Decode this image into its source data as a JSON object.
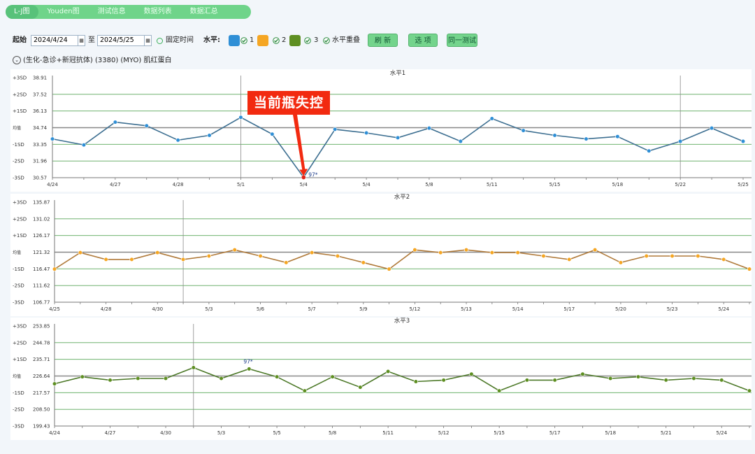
{
  "tabs": [
    {
      "label": "L-J图",
      "active": true
    },
    {
      "label": "Youden图",
      "active": false
    },
    {
      "label": "测试信息",
      "active": false
    },
    {
      "label": "数据列表",
      "active": false
    },
    {
      "label": "数据汇总",
      "active": false
    }
  ],
  "toolbar": {
    "start_label": "起始",
    "start_date": "2024/4/24",
    "to_label": "至",
    "end_date": "2024/5/25",
    "fixed_time_label": "固定时间",
    "level_label": "水平:",
    "levels": [
      {
        "label": "1",
        "color": "#2f8fd6"
      },
      {
        "label": "2",
        "color": "#f5a623"
      },
      {
        "label": "3",
        "color": "#5e8f22"
      }
    ],
    "overlay_label": "水平重叠",
    "refresh_label": "刷 新",
    "options_label": "选 项",
    "same_test_label": "同一测试"
  },
  "test_info": "(生化-急诊+新冠抗体)  (3380)  (MYO) 肌红蛋白",
  "annotation": {
    "text": "当前瓶失控",
    "color": "#f22a10"
  },
  "colors": {
    "grid": "#5aa85a",
    "mean": "#888888"
  },
  "chart_data": [
    {
      "type": "line",
      "title": "水平1",
      "sd_labels": [
        "+3SD",
        "+2SD",
        "+1SD",
        "均值",
        "-1SD",
        "-2SD",
        "-3SD"
      ],
      "y_ticks": [
        "38.91",
        "37.52",
        "36.13",
        "34.74",
        "33.35",
        "31.96",
        "30.57"
      ],
      "ylim": [
        30.57,
        38.91
      ],
      "mean": 34.74,
      "x_ticks": [
        "4/24",
        "4/27",
        "4/28",
        "5/1",
        "5/4",
        "5/4",
        "5/8",
        "5/11",
        "5/15",
        "5/18",
        "5/22",
        "5/25"
      ],
      "x_tick_pos": [
        0,
        2,
        4,
        6,
        8,
        10,
        12,
        14,
        16,
        18,
        20,
        22
      ],
      "vlines": [
        6,
        20
      ],
      "color": "#2f8fd6",
      "line_color": "#3d6f91",
      "values": [
        33.8,
        33.3,
        35.2,
        34.9,
        33.7,
        34.1,
        35.6,
        34.2,
        30.6,
        34.6,
        34.3,
        33.9,
        34.7,
        33.6,
        35.5,
        34.5,
        34.1,
        33.8,
        34.0,
        32.8,
        33.6,
        34.7,
        33.6
      ],
      "highlight": {
        "index": 8,
        "label": "97*",
        "color": "#e0241a"
      }
    },
    {
      "type": "line",
      "title": "水平2",
      "sd_labels": [
        "+3SD",
        "+2SD",
        "+1SD",
        "均值",
        "-1SD",
        "-2SD",
        "-3SD"
      ],
      "y_ticks": [
        "135.87",
        "131.02",
        "126.17",
        "121.32",
        "116.47",
        "111.62",
        "106.77"
      ],
      "ylim": [
        106.77,
        135.87
      ],
      "mean": 121.32,
      "x_ticks": [
        "4/25",
        "4/28",
        "4/30",
        "5/3",
        "5/6",
        "5/7",
        "5/9",
        "5/12",
        "5/13",
        "5/14",
        "5/17",
        "5/20",
        "5/23",
        "5/24"
      ],
      "x_tick_pos": [
        0,
        2,
        4,
        6,
        8,
        10,
        12,
        14,
        16,
        18,
        20,
        22,
        24,
        26
      ],
      "vlines": [
        5
      ],
      "color": "#f5a623",
      "line_color": "#b07a3a",
      "values": [
        116.4,
        121.2,
        119.2,
        119.2,
        121.2,
        119.2,
        120.2,
        122.0,
        120.2,
        118.3,
        121.2,
        120.2,
        118.3,
        116.4,
        122.0,
        121.2,
        122.0,
        121.2,
        121.2,
        120.2,
        119.2,
        122.0,
        118.3,
        120.2,
        120.2,
        120.2,
        119.2,
        116.4
      ]
    },
    {
      "type": "line",
      "title": "水平3",
      "sd_labels": [
        "+3SD",
        "+2SD",
        "+1SD",
        "均值",
        "-1SD",
        "-2SD",
        "-3SD"
      ],
      "y_ticks": [
        "253.85",
        "244.78",
        "235.71",
        "226.64",
        "217.57",
        "208.50",
        "199.43"
      ],
      "ylim": [
        199.43,
        253.85
      ],
      "mean": 226.64,
      "x_ticks": [
        "4/24",
        "4/27",
        "4/30",
        "5/3",
        "5/5",
        "5/8",
        "5/11",
        "5/12",
        "5/15",
        "5/17",
        "5/18",
        "5/21",
        "5/24"
      ],
      "x_tick_pos": [
        0,
        2,
        4,
        6,
        8,
        10,
        12,
        14,
        16,
        18,
        20,
        22,
        24
      ],
      "vlines": [
        5
      ],
      "color": "#5e8f22",
      "line_color": "#4e7a2a",
      "values": [
        222.4,
        226.2,
        224.4,
        225.3,
        225.3,
        231.2,
        225.3,
        230.5,
        226.2,
        218.6,
        226.2,
        220.5,
        229.1,
        223.6,
        224.4,
        227.7,
        218.6,
        224.4,
        224.4,
        227.7,
        225.3,
        226.2,
        224.4,
        225.3,
        224.4,
        218.6
      ],
      "highlight": {
        "index": 7,
        "label": "97*",
        "color": "#5e8f22"
      }
    }
  ]
}
